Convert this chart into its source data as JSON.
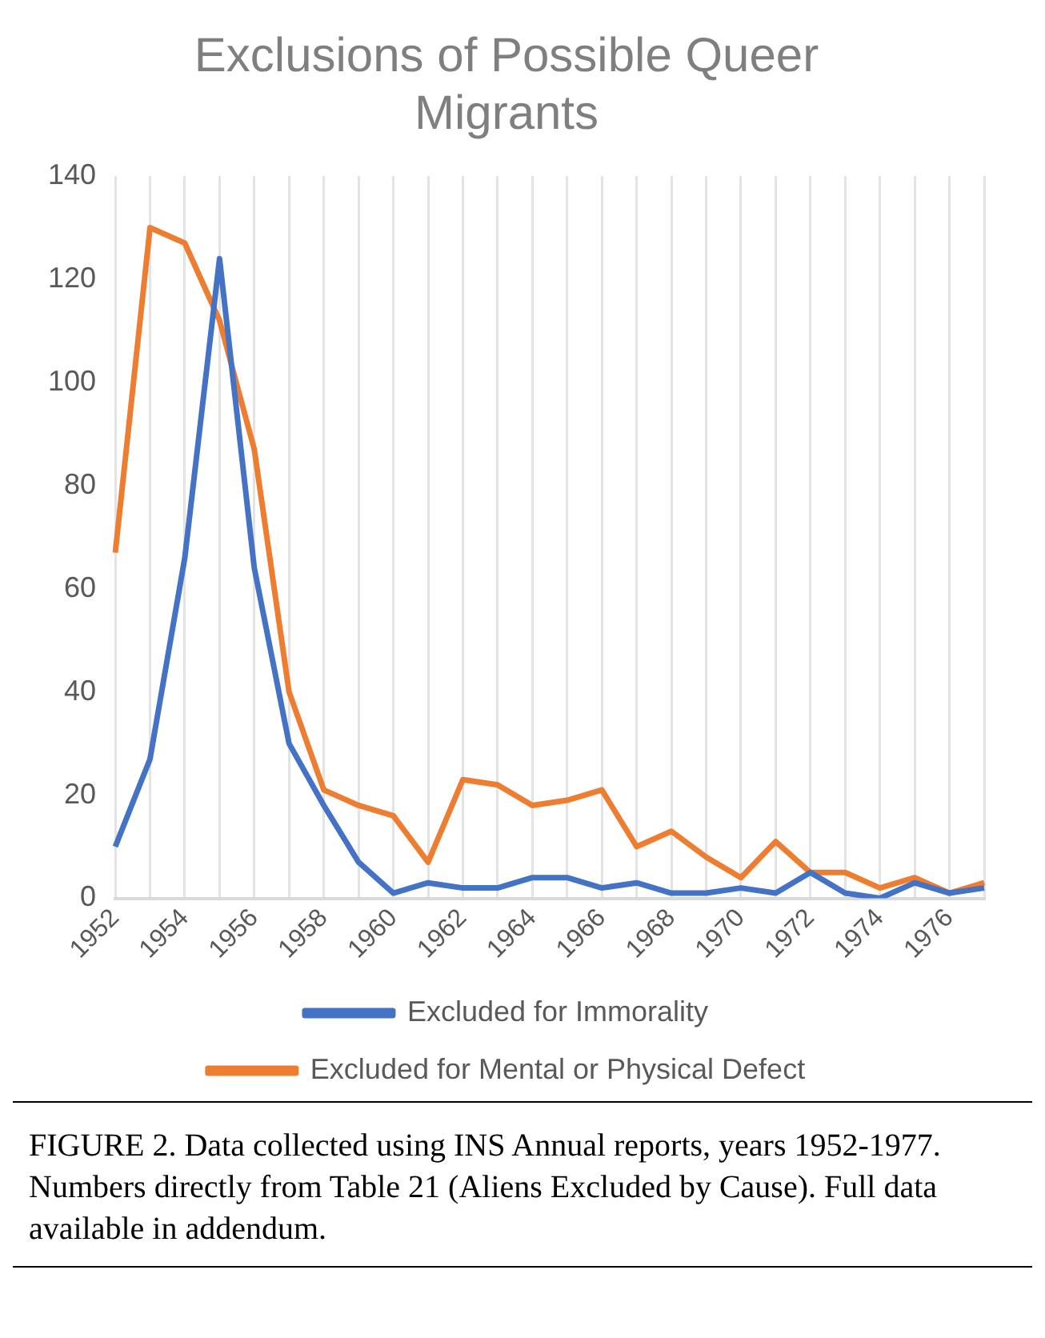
{
  "chart_data": {
    "type": "line",
    "title": "Exclusions of Possible Queer Migrants",
    "categories": [
      "1952",
      null,
      "1954",
      null,
      "1956",
      null,
      "1958",
      null,
      "1960",
      null,
      "1962",
      null,
      "1964",
      null,
      "1966",
      null,
      "1968",
      null,
      "1970",
      null,
      "1972",
      null,
      "1974",
      null,
      "1976",
      null
    ],
    "series": [
      {
        "name": "Excluded for Immorality",
        "color": "#4472c4",
        "values": [
          10,
          27,
          66,
          124,
          64,
          30,
          18,
          7,
          1,
          3,
          2,
          2,
          4,
          4,
          2,
          3,
          1,
          1,
          2,
          1,
          5,
          1,
          0,
          3,
          1,
          2
        ]
      },
      {
        "name": "Excluded for Mental or Physical Defect",
        "color": "#ed7d31",
        "values": [
          67,
          130,
          127,
          112,
          87,
          40,
          21,
          18,
          16,
          7,
          23,
          22,
          18,
          19,
          21,
          10,
          13,
          8,
          4,
          11,
          5,
          5,
          2,
          4,
          1,
          3
        ]
      }
    ],
    "ylim": [
      0,
      140
    ],
    "yticks": [
      0,
      20,
      40,
      60,
      80,
      100,
      120,
      140
    ],
    "grid": "x",
    "legend": "bottom",
    "marker": "none",
    "line_style": "solid",
    "annotations": [
      "FIGURE 2. Data collected using INS Annual reports, years 1952-1977. Numbers directly from Table 21 (Aliens Excluded by Cause). Full data available in addendum."
    ]
  }
}
